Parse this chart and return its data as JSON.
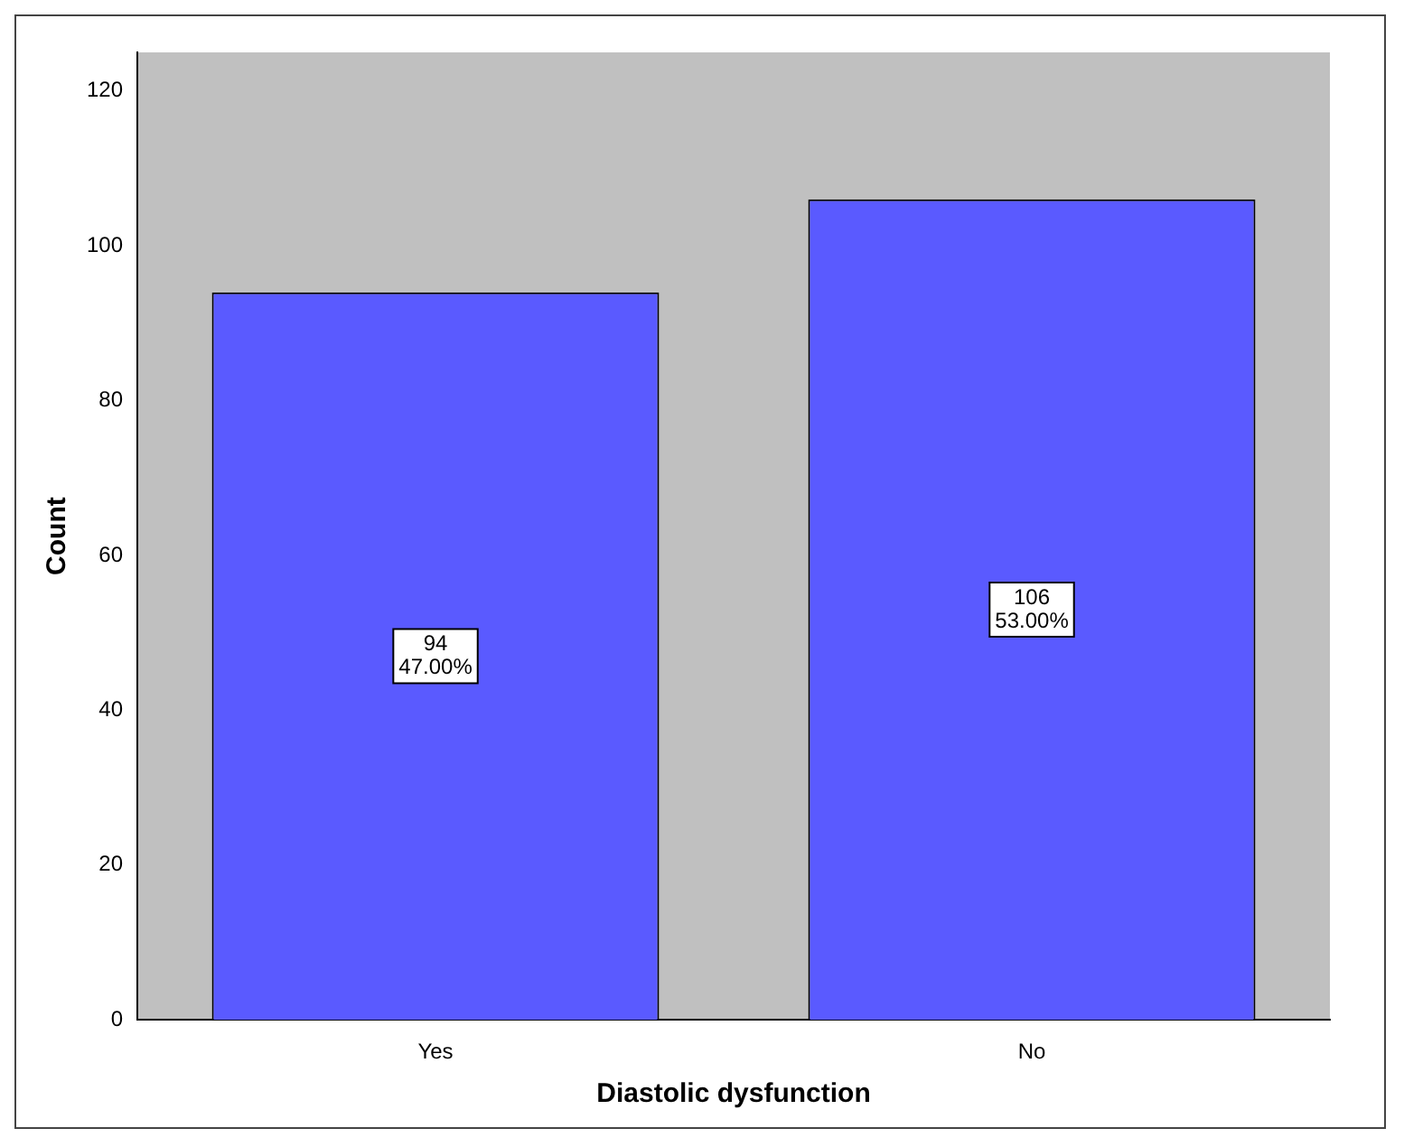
{
  "chart_data": {
    "type": "bar",
    "xlabel": "Diastolic dysfunction",
    "ylabel": "Count",
    "categories": [
      "Yes",
      "No"
    ],
    "values": [
      94,
      106
    ],
    "color": "#5a5aff",
    "value_labels": [
      "94\n47.00%",
      "106\n53.00%"
    ],
    "ylim": [
      0,
      125
    ],
    "yticks": [
      0,
      20,
      40,
      60,
      80,
      100,
      120
    ],
    "grid": false,
    "legend": false
  }
}
